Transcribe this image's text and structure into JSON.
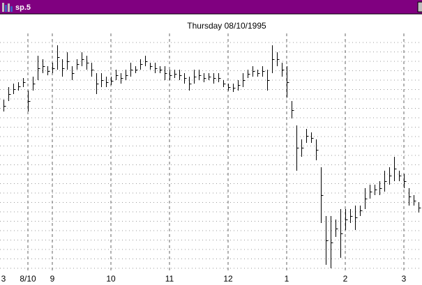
{
  "window": {
    "title": "sp.5"
  },
  "chart_data": {
    "type": "hlc",
    "title": "Thursday 08/10/1995",
    "categories": [
      "3",
      null,
      null,
      null,
      null,
      "8/10",
      null,
      null,
      null,
      null,
      "9",
      null,
      null,
      null,
      null,
      null,
      null,
      null,
      null,
      null,
      null,
      null,
      "10",
      null,
      null,
      null,
      null,
      null,
      null,
      null,
      null,
      null,
      null,
      null,
      "11",
      null,
      null,
      null,
      null,
      null,
      null,
      null,
      null,
      null,
      null,
      null,
      "12",
      null,
      null,
      null,
      null,
      null,
      null,
      null,
      null,
      null,
      null,
      null,
      "1",
      null,
      null,
      null,
      null,
      null,
      null,
      null,
      null,
      null,
      null,
      null,
      "2",
      null,
      null,
      null,
      null,
      null,
      null,
      null,
      null,
      null,
      null,
      null,
      "3",
      null,
      null,
      null
    ],
    "high": [
      257,
      275,
      280,
      282,
      288,
      270,
      290,
      320,
      315,
      305,
      310,
      335,
      315,
      325,
      305,
      315,
      325,
      320,
      310,
      295,
      295,
      290,
      290,
      300,
      295,
      300,
      310,
      305,
      315,
      320,
      310,
      310,
      305,
      305,
      300,
      300,
      300,
      295,
      290,
      300,
      300,
      295,
      295,
      295,
      295,
      285,
      280,
      280,
      285,
      295,
      300,
      305,
      300,
      305,
      300,
      335,
      325,
      310,
      305,
      255,
      220,
      200,
      215,
      210,
      200,
      160,
      90,
      90,
      85,
      100,
      100,
      100,
      105,
      105,
      130,
      135,
      135,
      140,
      155,
      160,
      175,
      155,
      150,
      130,
      120,
      110
    ],
    "low": [
      240,
      255,
      265,
      270,
      275,
      240,
      270,
      285,
      295,
      292,
      295,
      300,
      290,
      300,
      285,
      300,
      305,
      300,
      290,
      265,
      275,
      275,
      278,
      285,
      280,
      285,
      290,
      295,
      300,
      305,
      300,
      295,
      295,
      285,
      285,
      288,
      285,
      280,
      270,
      280,
      285,
      282,
      285,
      280,
      282,
      275,
      270,
      268,
      270,
      275,
      288,
      290,
      290,
      290,
      270,
      295,
      305,
      290,
      260,
      230,
      155,
      175,
      195,
      195,
      170,
      80,
      20,
      15,
      60,
      30,
      70,
      80,
      70,
      90,
      100,
      115,
      120,
      120,
      125,
      135,
      140,
      140,
      130,
      105,
      105,
      95
    ],
    "close": [
      248,
      265,
      272,
      276,
      282,
      255,
      280,
      302,
      305,
      298,
      302,
      318,
      302,
      312,
      295,
      308,
      315,
      310,
      300,
      280,
      285,
      282,
      284,
      292,
      288,
      292,
      300,
      300,
      308,
      312,
      305,
      302,
      300,
      295,
      292,
      294,
      292,
      288,
      280,
      290,
      292,
      288,
      290,
      288,
      288,
      280,
      275,
      274,
      278,
      285,
      294,
      298,
      295,
      298,
      285,
      315,
      315,
      300,
      282,
      242,
      188,
      188,
      205,
      202,
      185,
      120,
      55,
      52,
      72,
      65,
      85,
      90,
      88,
      98,
      115,
      125,
      128,
      130,
      140,
      148,
      158,
      148,
      140,
      118,
      112,
      102
    ],
    "ylim": [
      8,
      352
    ],
    "color": "#000000"
  }
}
